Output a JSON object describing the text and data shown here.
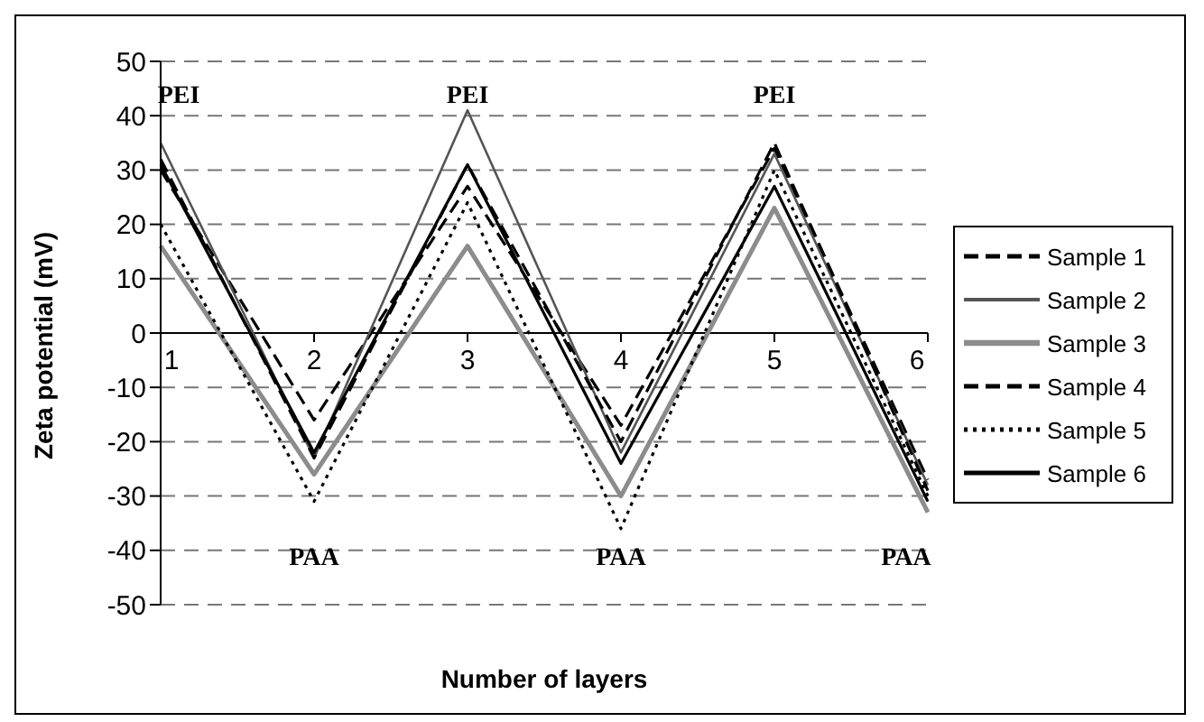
{
  "chart_data": {
    "type": "line",
    "xlabel": "Number of layers",
    "ylabel": "Zeta potential (mV)",
    "categories": [
      "1",
      "2",
      "3",
      "4",
      "5",
      "6"
    ],
    "series": [
      {
        "name": "Sample 1",
        "color": "#000000",
        "line_style": "dashed",
        "values": [
          30,
          -16,
          27,
          -17,
          34,
          -27
        ]
      },
      {
        "name": "Sample 2",
        "color": "#555555",
        "line_style": "solid",
        "values": [
          35,
          -23,
          41,
          -22,
          33,
          -28
        ]
      },
      {
        "name": "Sample 3",
        "color": "#8c8c8c",
        "line_style": "solid",
        "values": [
          16,
          -26,
          16,
          -30,
          23,
          -33
        ]
      },
      {
        "name": "Sample 4",
        "color": "#000000",
        "line_style": "dashed",
        "values": [
          32,
          -23,
          31,
          -20,
          35,
          -29
        ]
      },
      {
        "name": "Sample 5",
        "color": "#000000",
        "line_style": "dotted",
        "values": [
          20,
          -31,
          24,
          -36,
          30,
          -30
        ]
      },
      {
        "name": "Sample 6",
        "color": "#000000",
        "line_style": "solid",
        "values": [
          31,
          -22,
          31,
          -24,
          27,
          -31
        ]
      }
    ],
    "ylim": [
      -50,
      50
    ],
    "yticks": [
      -50,
      -40,
      -30,
      -20,
      -10,
      0,
      10,
      20,
      30,
      40,
      50
    ],
    "grid": "y",
    "legend": "right",
    "marker": "none",
    "annotations": [
      "PEI",
      "PAA",
      "PEI",
      "PAA",
      "PEI",
      "PAA"
    ]
  }
}
